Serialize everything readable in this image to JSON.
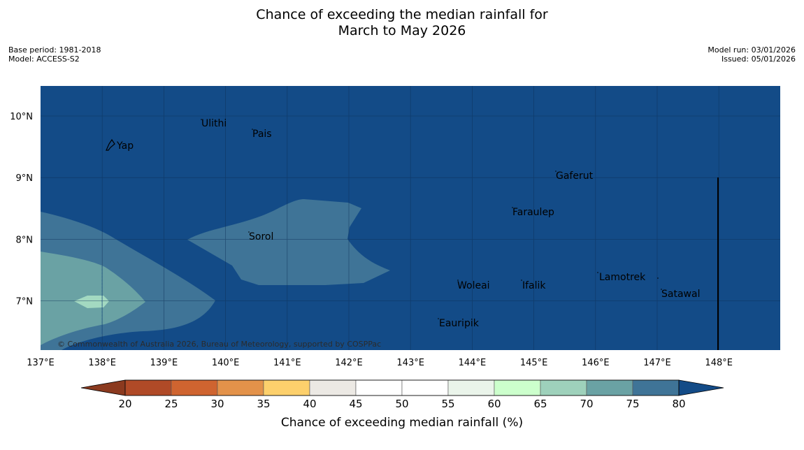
{
  "title": {
    "line1": "Chance of exceeding the median rainfall for",
    "line2": "March to May 2026"
  },
  "meta_left": {
    "base_period": "Base period: 1981-2018",
    "model": "Model: ACCESS-S2"
  },
  "meta_right": {
    "model_run": "Model run: 03/01/2026",
    "issued": "Issued: 05/01/2026"
  },
  "map": {
    "lon_ticks": [
      "137°E",
      "138°E",
      "139°E",
      "140°E",
      "141°E",
      "142°E",
      "143°E",
      "144°E",
      "145°E",
      "146°E",
      "147°E",
      "148°E"
    ],
    "lat_ticks": [
      "10°N",
      "9°N",
      "8°N",
      "7°N"
    ],
    "places": [
      {
        "name": "Ulithi"
      },
      {
        "name": "Pais"
      },
      {
        "name": "Yap"
      },
      {
        "name": "Gaferut"
      },
      {
        "name": "Faraulep"
      },
      {
        "name": "Sorol"
      },
      {
        "name": "Lamotrek"
      },
      {
        "name": "Woleai"
      },
      {
        "name": "Ifalik"
      },
      {
        "name": "Satawal"
      },
      {
        "name": "Eauripik"
      }
    ],
    "copyright": "© Commonwealth of Australia 2026, Bureau of Meteorology, supported by COSPPac",
    "region_categories": [
      "above 80",
      "75-80",
      "70-75",
      "65-70"
    ]
  },
  "colorbar": {
    "ticks": [
      "20",
      "25",
      "30",
      "35",
      "40",
      "45",
      "50",
      "55",
      "60",
      "65",
      "70",
      "75",
      "80"
    ],
    "colors": [
      "#8b3a1f",
      "#b04a27",
      "#cf6430",
      "#e3924a",
      "#fdd06c",
      "#ece9e4",
      "#ffffff",
      "#ffffff",
      "#eaf4ea",
      "#ccffcc",
      "#9ed1bb",
      "#6aa2a4",
      "#3f7497",
      "#134b87"
    ],
    "label": "Chance of exceeding median rainfall (%)"
  },
  "colors": {
    "ocean_above80": "#134b87",
    "band_75_80": "#3f7497",
    "band_70_75": "#6aa2a4",
    "band_65_70": "#a3d9c1"
  }
}
